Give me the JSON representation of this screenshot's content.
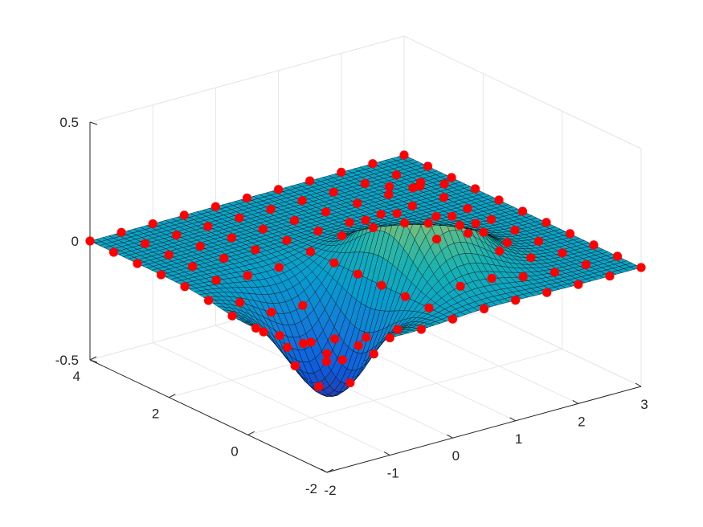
{
  "chart_data": {
    "type": "surface3d",
    "title": "",
    "xlabel": "",
    "ylabel": "",
    "zlabel": "",
    "function": "z = x * exp(-x^2 - y^2)",
    "xlim": [
      -2,
      3
    ],
    "ylim": [
      -2,
      4
    ],
    "zlim": [
      -0.5,
      0.5
    ],
    "x_ticks": [
      -2,
      -1,
      0,
      1,
      2,
      3
    ],
    "y_ticks": [
      -2,
      0,
      2,
      4
    ],
    "z_ticks": [
      -0.5,
      0,
      0.5
    ],
    "x_tick_labels": [
      "-2",
      "-1",
      "0",
      "1",
      "2",
      "3"
    ],
    "y_tick_labels": [
      "-2",
      "0",
      "2",
      "4"
    ],
    "z_tick_labels": [
      "-0.5",
      "0",
      "0.5"
    ],
    "surface_peak": {
      "x": 0.71,
      "y": 0.0,
      "z": 0.43
    },
    "surface_trough": {
      "x": -0.71,
      "y": 0.0,
      "z": -0.43
    },
    "scatter_series": {
      "marker": "filled-circle",
      "color": "#ff0000",
      "x_range": [
        -2,
        3
      ],
      "y_range": [
        -2,
        4
      ],
      "grid_step_x": 0.5,
      "grid_step_y": 0.6,
      "point_count": 121
    },
    "grid": true,
    "colormap": "parula",
    "colors": {
      "axis": "#262626",
      "grid": "#e6e6e6",
      "mesh": "#000000",
      "marker": "#ff0000"
    }
  }
}
